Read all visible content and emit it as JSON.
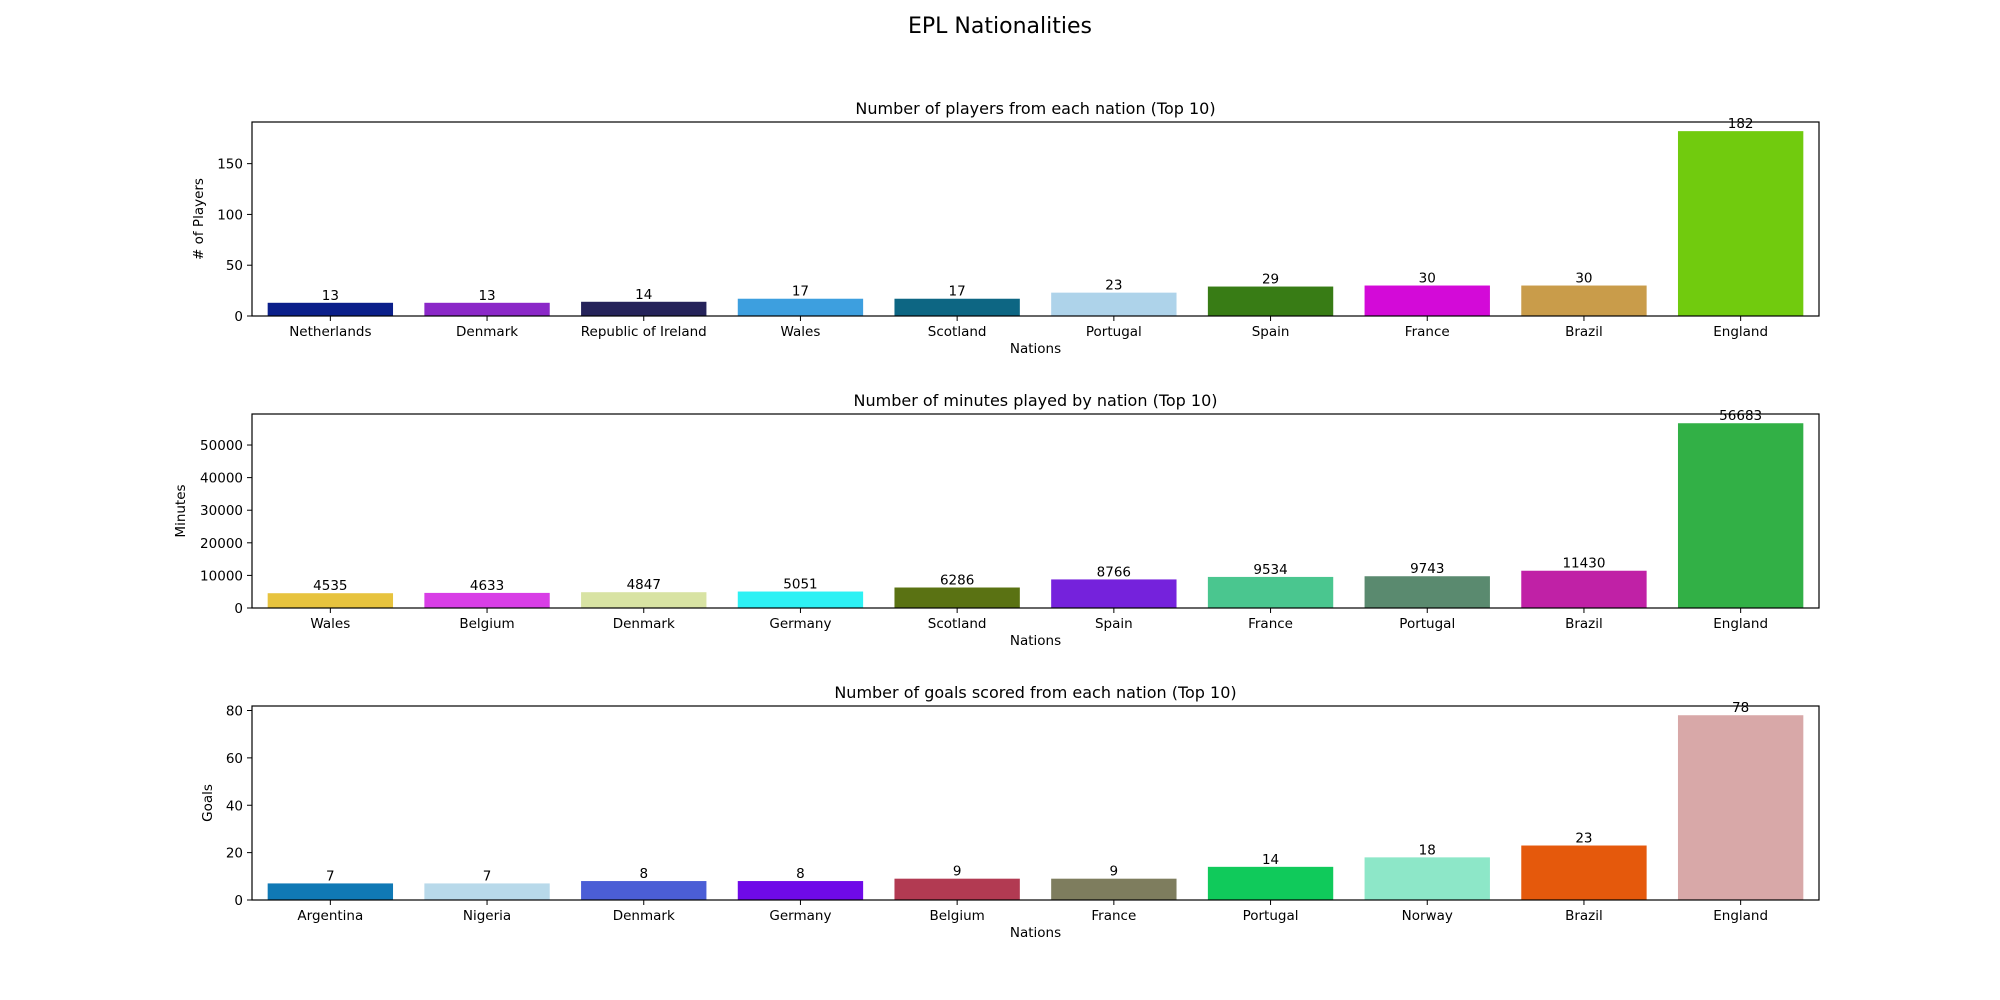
{
  "figure": {
    "title": "EPL Nationalities"
  },
  "chart_data": [
    {
      "type": "bar",
      "title": "Number of players from each nation (Top 10)",
      "xlabel": "Nations",
      "ylabel": "# of Players",
      "categories": [
        "Netherlands",
        "Denmark",
        "Republic of Ireland",
        "Wales",
        "Scotland",
        "Portugal",
        "Spain",
        "France",
        "Brazil",
        "England"
      ],
      "values": [
        13,
        13,
        14,
        17,
        17,
        23,
        29,
        30,
        30,
        182
      ],
      "colors": [
        "#0b1f8a",
        "#8b28c8",
        "#25235a",
        "#3d9fdf",
        "#0d6683",
        "#aed3ea",
        "#387c15",
        "#d30ad8",
        "#c99c4a",
        "#71cb0e"
      ],
      "yticks": [
        0,
        50,
        100,
        150
      ],
      "ylim": [
        0,
        191
      ],
      "grid": false
    },
    {
      "type": "bar",
      "title": "Number of minutes played by nation (Top 10)",
      "xlabel": "Nations",
      "ylabel": "Minutes",
      "categories": [
        "Wales",
        "Belgium",
        "Denmark",
        "Germany",
        "Scotland",
        "Spain",
        "France",
        "Portugal",
        "Brazil",
        "England"
      ],
      "values": [
        4535,
        4633,
        4847,
        5051,
        6286,
        8766,
        9534,
        9743,
        11430,
        56683
      ],
      "colors": [
        "#e7c33e",
        "#d83ee6",
        "#d8e3a3",
        "#2ef1f4",
        "#5a7213",
        "#7522dc",
        "#4ac68f",
        "#5a8a6f",
        "#c021a6",
        "#32b046"
      ],
      "yticks": [
        0,
        10000,
        20000,
        30000,
        40000,
        50000
      ],
      "ylim": [
        0,
        59517
      ],
      "grid": false
    },
    {
      "type": "bar",
      "title": "Number of goals scored from each nation (Top 10)",
      "xlabel": "Nations",
      "ylabel": "Goals",
      "categories": [
        "Argentina",
        "Nigeria",
        "Denmark",
        "Germany",
        "Belgium",
        "France",
        "Portugal",
        "Norway",
        "Brazil",
        "England"
      ],
      "values": [
        7,
        7,
        8,
        8,
        9,
        9,
        14,
        18,
        23,
        78
      ],
      "colors": [
        "#1079b5",
        "#b8d9ea",
        "#4b5ed6",
        "#6f0ae8",
        "#b23a52",
        "#7e7d5e",
        "#10ca5b",
        "#8de7c8",
        "#e5590c",
        "#d8a8a8"
      ],
      "yticks": [
        0,
        20,
        40,
        60,
        80
      ],
      "ylim": [
        0,
        81.9
      ],
      "grid": false
    }
  ]
}
